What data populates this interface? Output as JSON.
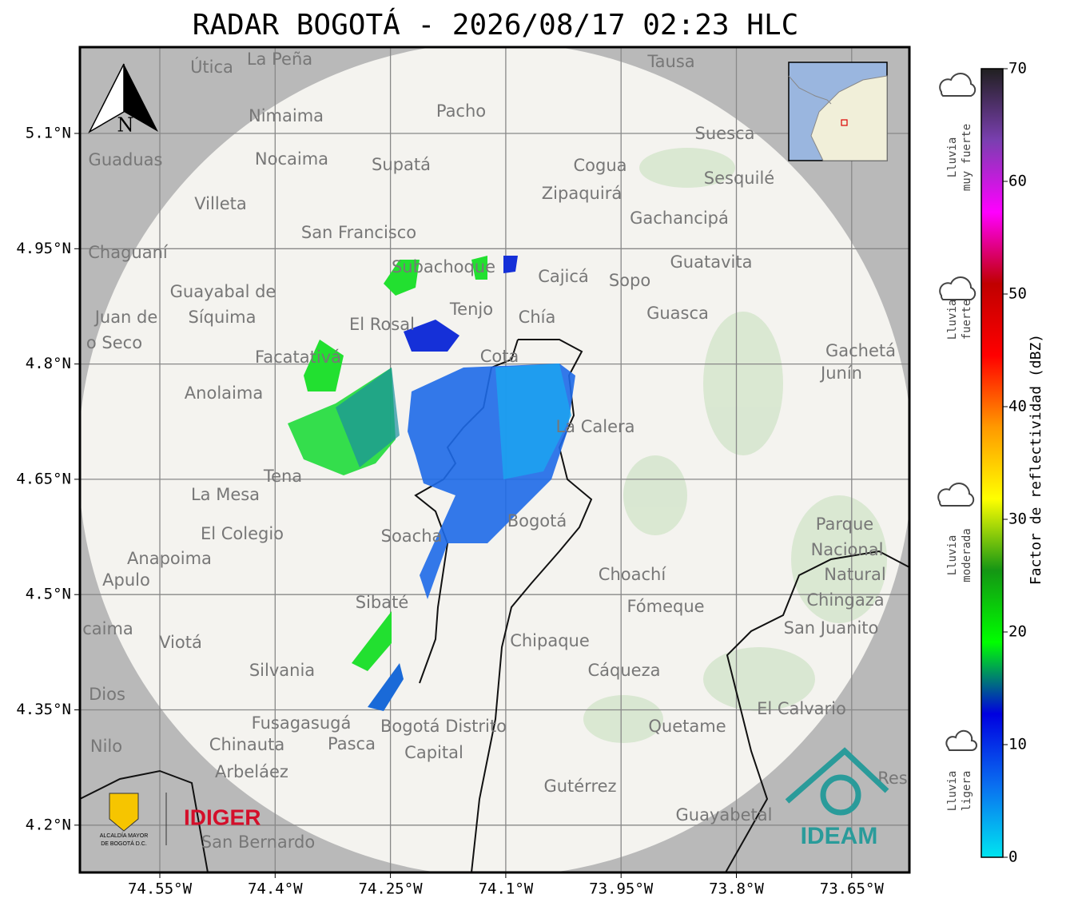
{
  "title": "RADAR BOGOTÁ - 2026/08/17 02:23 HLC",
  "map": {
    "lon_ticks": [
      "74.55°W",
      "74.4°W",
      "74.25°W",
      "74.1°W",
      "73.95°W",
      "73.8°W",
      "73.65°W"
    ],
    "lat_ticks": [
      "5.1°N",
      "4.95°N",
      "4.8°N",
      "4.65°N",
      "4.5°N",
      "4.35°N",
      "4.2°N"
    ],
    "north_label": "N",
    "places": [
      "Útica",
      "La Peña",
      "Tausa",
      "Pacho",
      "Nimaima",
      "Guaduas",
      "Nocaima",
      "Supatá",
      "Cogua",
      "Suesca",
      "Sesquilé",
      "Zipaquirá",
      "Villeta",
      "Gachancipá",
      "San Francisco",
      "Chaguaní",
      "Guatavita",
      "Subachoque",
      "Cajicá",
      "Sopo",
      "Guayabal de",
      "Síquima",
      "Juan de",
      "Tenjo",
      "Chía",
      "Guasca",
      "El Rosal",
      "o Seco",
      "Facatativá",
      "Cota",
      "Gachetá",
      "Junín",
      "Anolaima",
      "La Calera",
      "Tena",
      "La Mesa",
      "Bogotá",
      "Parque",
      "Nacional",
      "Natural",
      "Chingaza",
      "El Colegio",
      "Soacha",
      "Anapoima",
      "Apulo",
      "Choachí",
      "Sibaté",
      "Fómeque",
      "San Juanito",
      "caima",
      "Viotá",
      "Chipaque",
      "Silvania",
      "Cáqueza",
      "Dios",
      "El Calvario",
      "Fusagasugá",
      "Bogotá Distrito",
      "Quetame",
      "Nilo",
      "Chinauta",
      "Pasca",
      "Capital",
      "Arbeláez",
      "Gutérrez",
      "Guayabetal",
      "San Bernardo",
      "Res"
    ]
  },
  "logos": {
    "alcaldia_line1": "ALCALDÍA MAYOR",
    "alcaldia_line2": "DE BOGOTÁ D.C.",
    "idiger": "IDIGER",
    "ideam": "IDEAM"
  },
  "colorbar": {
    "label": "Factor de reflectividad (dBZ)",
    "range": [
      0,
      70
    ],
    "ticks": [
      0,
      10,
      20,
      30,
      40,
      50,
      60,
      70
    ],
    "colors": [
      "#00e5f0",
      "#0a6ff0",
      "#0000e0",
      "#00ff00",
      "#149614",
      "#ffff00",
      "#ff9900",
      "#ff0000",
      "#c00000",
      "#ff00ff",
      "#7a3fb0",
      "#202020"
    ]
  },
  "rain_levels": [
    [
      "Lluvia",
      "muy fuerte"
    ],
    [
      "Lluvia",
      "fuerte"
    ],
    [
      "Lluvia",
      "moderada"
    ],
    [
      "Lluvia",
      "ligera"
    ]
  ]
}
